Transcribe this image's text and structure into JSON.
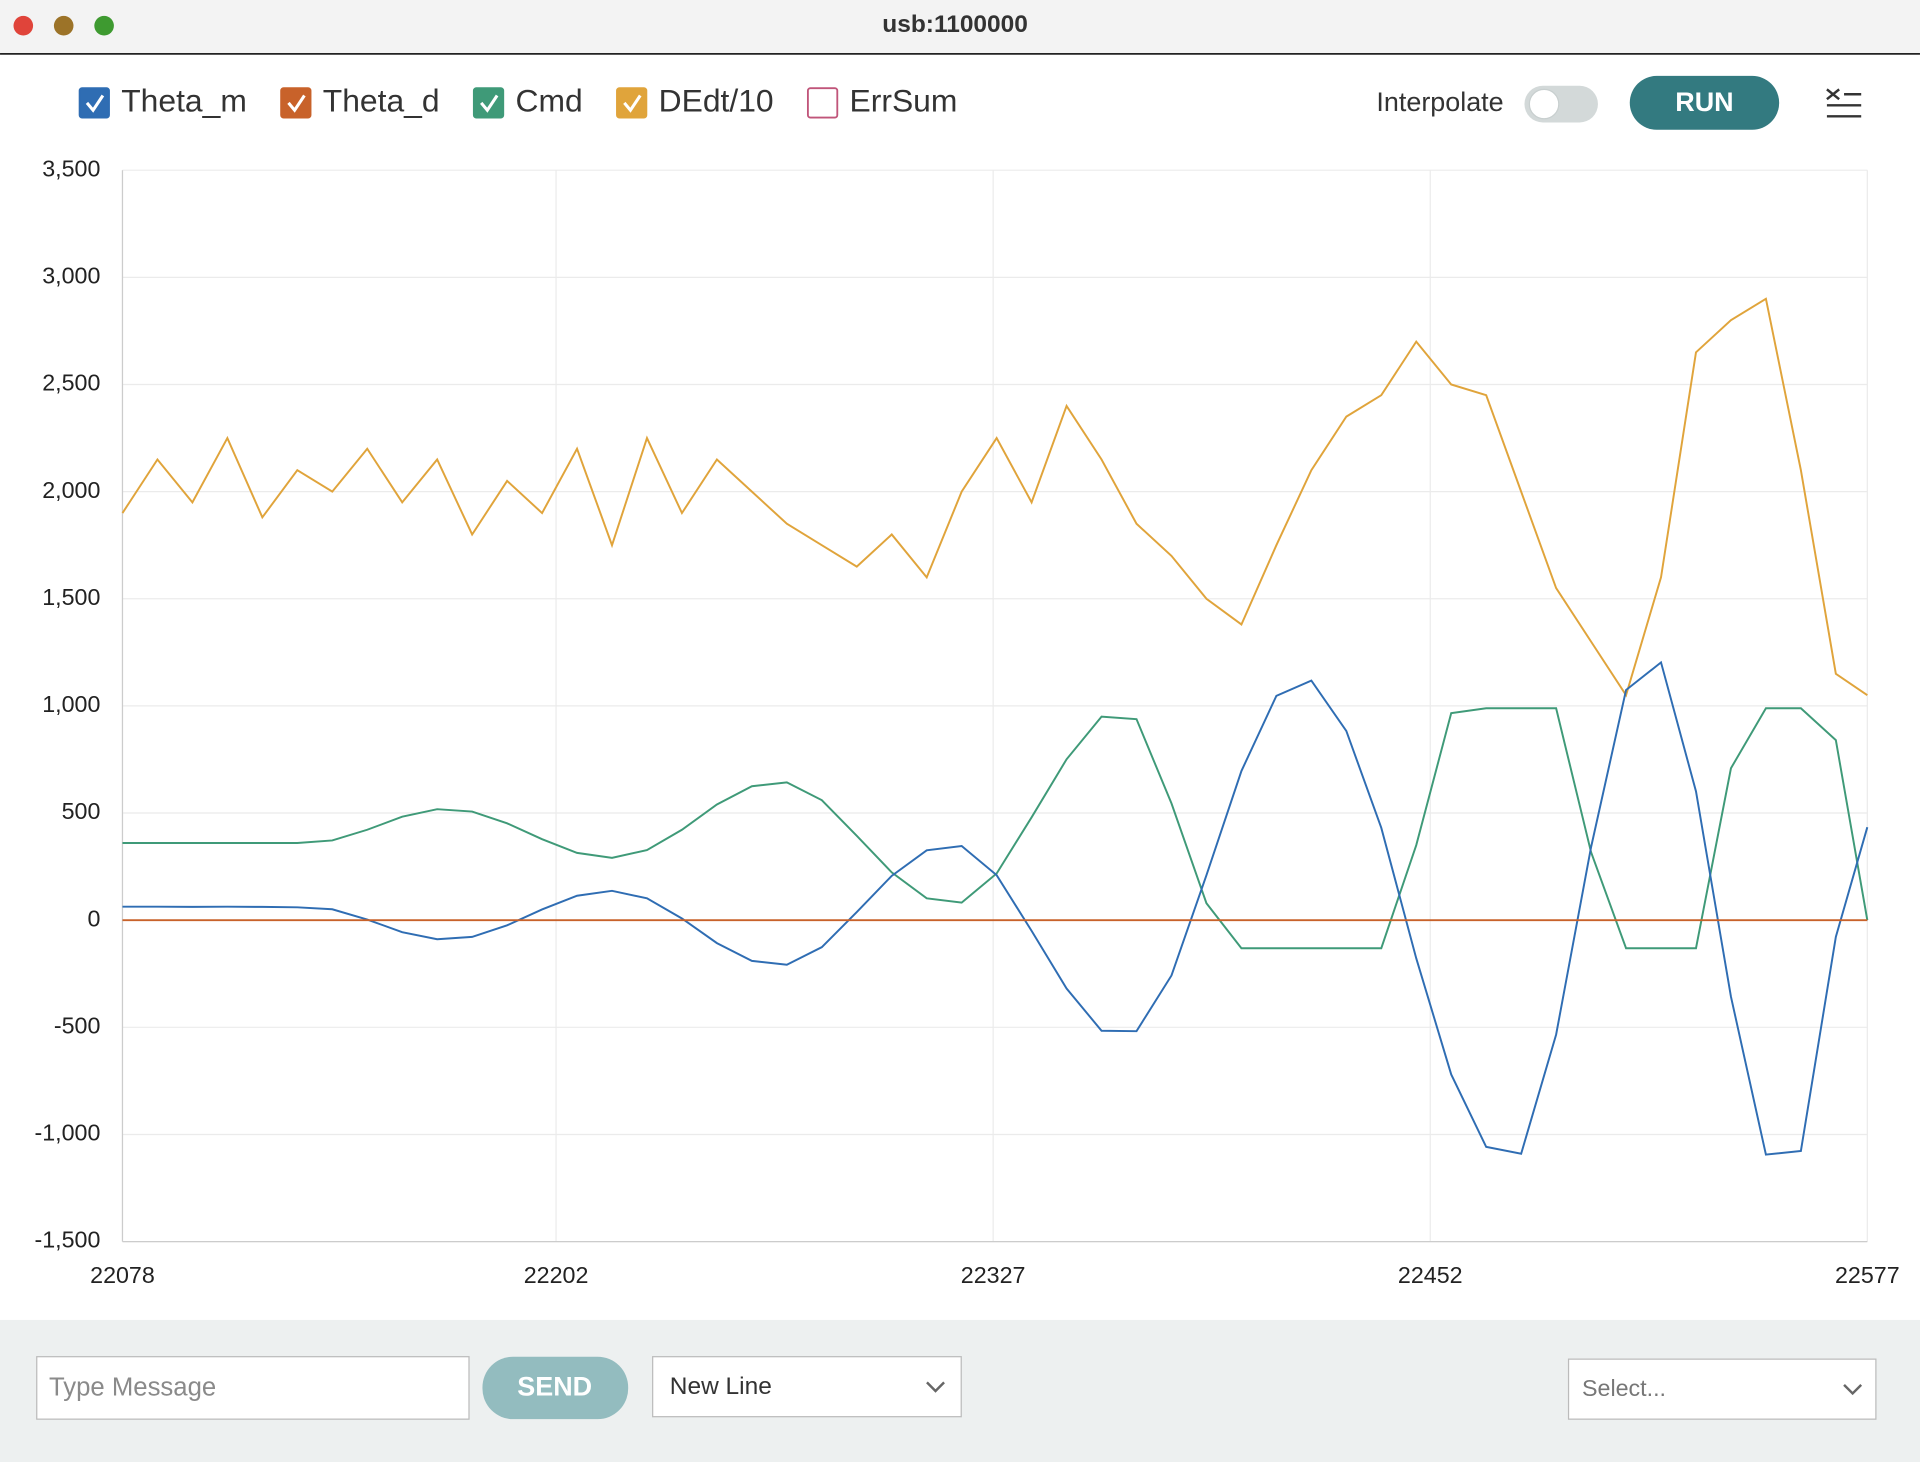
{
  "window": {
    "title": "usb:1100000"
  },
  "toolbar": {
    "interpolate_label": "Interpolate",
    "interpolate": false,
    "run": "RUN"
  },
  "chart_data": {
    "type": "line",
    "x": [
      22078,
      22088,
      22098,
      22108,
      22118,
      22128,
      22138,
      22148,
      22158,
      22168,
      22178,
      22188,
      22198,
      22208,
      22218,
      22228,
      22238,
      22248,
      22258,
      22268,
      22278,
      22288,
      22298,
      22308,
      22318,
      22328,
      22338,
      22348,
      22358,
      22368,
      22378,
      22388,
      22398,
      22408,
      22418,
      22428,
      22438,
      22448,
      22458,
      22468,
      22478,
      22488,
      22498,
      22508,
      22518,
      22528,
      22538,
      22548,
      22558,
      22568,
      22577
    ],
    "series": [
      {
        "name": "Theta_m",
        "color": "#2f6db3",
        "visible": true,
        "values": [
          63,
          63,
          62,
          63,
          62,
          60,
          51,
          3,
          -56,
          -89,
          -78,
          -24,
          50,
          114,
          137,
          102,
          8,
          -107,
          -190,
          -208,
          -126,
          38,
          207,
          326,
          346,
          210,
          -50,
          -319,
          -516,
          -518,
          -258,
          210,
          696,
          1047,
          1118,
          883,
          431,
          -178,
          -720,
          -1058,
          -1090,
          -534,
          341,
          1074,
          1203,
          601,
          -357,
          -1094,
          -1077,
          -78,
          434
        ]
      },
      {
        "name": "Theta_d",
        "color": "#c8622a",
        "visible": true,
        "values": [
          0,
          0,
          0,
          0,
          0,
          0,
          0,
          0,
          0,
          0,
          0,
          0,
          0,
          0,
          0,
          0,
          0,
          0,
          0,
          0,
          0,
          0,
          0,
          0,
          0,
          0,
          0,
          0,
          0,
          0,
          0,
          0,
          0,
          0,
          0,
          0,
          0,
          0,
          0,
          0,
          0,
          0,
          0,
          0,
          0,
          0,
          0,
          0,
          0,
          0,
          0
        ]
      },
      {
        "name": "Cmd",
        "color": "#3f9a78",
        "visible": true,
        "values": [
          360,
          360,
          360,
          360,
          360,
          360,
          372,
          422,
          483,
          518,
          507,
          452,
          378,
          314,
          291,
          327,
          422,
          540,
          625,
          643,
          560,
          394,
          223,
          102,
          82,
          218,
          480,
          751,
          950,
          938,
          545,
          79,
          -131,
          -131,
          -131,
          -131,
          -131,
          350,
          966,
          989,
          989,
          989,
          317,
          -131,
          -131,
          -131,
          709,
          989,
          989,
          840,
          0
        ]
      },
      {
        "name": "DEdt/10",
        "color": "#e0a43b",
        "visible": true,
        "values": [
          1900,
          2150,
          1950,
          2250,
          1880,
          2100,
          2000,
          2200,
          1950,
          2150,
          1800,
          2050,
          1900,
          2200,
          1750,
          2250,
          1900,
          2150,
          2000,
          1850,
          1750,
          1650,
          1800,
          1600,
          2000,
          2250,
          1950,
          2400,
          2150,
          1850,
          1700,
          1500,
          1380,
          1750,
          2100,
          2350,
          2450,
          2700,
          2500,
          2450,
          2000,
          1550,
          1300,
          1050,
          1600,
          2650,
          2800,
          2900,
          2100,
          1150,
          1050
        ]
      },
      {
        "name": "ErrSum",
        "color": "#c0557a",
        "visible": false
      }
    ],
    "xlim": [
      22078,
      22577
    ],
    "xticks": [
      22078,
      22202,
      22327,
      22452,
      22577
    ],
    "ylim": [
      -1500,
      3500
    ],
    "yticks": [
      {
        "value": -1500,
        "label": "-1,500"
      },
      {
        "value": -1000,
        "label": "-1,000"
      },
      -500,
      0,
      500,
      {
        "value": 1000,
        "label": "1,000"
      },
      {
        "value": 1500,
        "label": "1,500"
      },
      {
        "value": 2000,
        "label": "2,000"
      },
      {
        "value": 2500,
        "label": "2,500"
      },
      {
        "value": 3000,
        "label": "3,000"
      },
      {
        "value": 3500,
        "label": "3,500"
      }
    ],
    "grid": true
  },
  "footer": {
    "message_placeholder": "Type Message",
    "send": "SEND",
    "line_ending": "New Line",
    "select": "Select..."
  }
}
